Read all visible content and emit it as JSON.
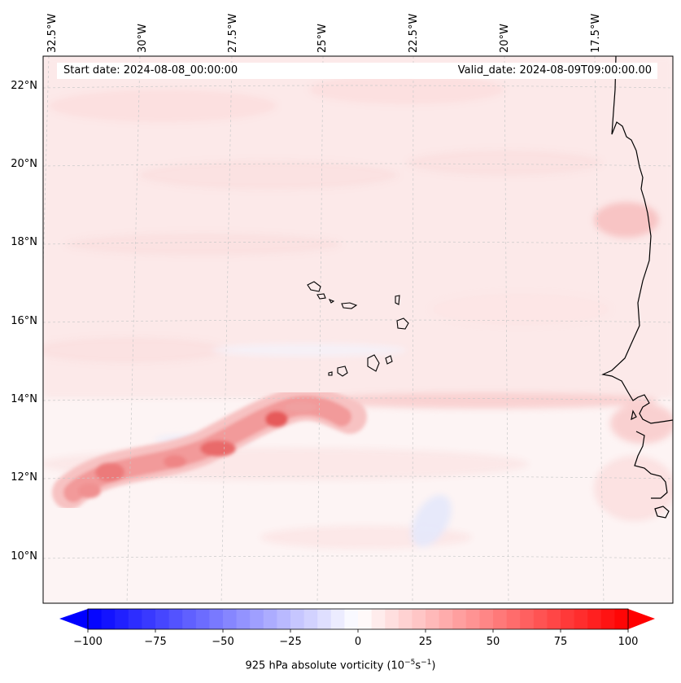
{
  "map": {
    "start_date": "Start date: 2024-08-08_00:00:00",
    "valid_date": "Valid_date: 2024-08-09T09:00:00.00",
    "lon_ticks": [
      "32.5°W",
      "30°W",
      "27.5°W",
      "25°W",
      "22.5°W",
      "20°W",
      "17.5°W"
    ],
    "lat_ticks": [
      "22°N",
      "20°N",
      "18°N",
      "16°N",
      "14°N",
      "12°N",
      "10°N"
    ],
    "variable": "925 hPa absolute vorticity"
  },
  "colorbar": {
    "labels": [
      "−100",
      "−75",
      "−50",
      "−25",
      "0",
      "25",
      "50",
      "75",
      "100"
    ],
    "min": -100,
    "max": 100,
    "title_prefix": "925 hPa absolute vorticity (10",
    "title_exp1": "−5",
    "title_mid": "s",
    "title_exp2": "−1",
    "title_suffix": ")",
    "neg_color": "#0000ff",
    "pos_color": "#ff0000"
  }
}
